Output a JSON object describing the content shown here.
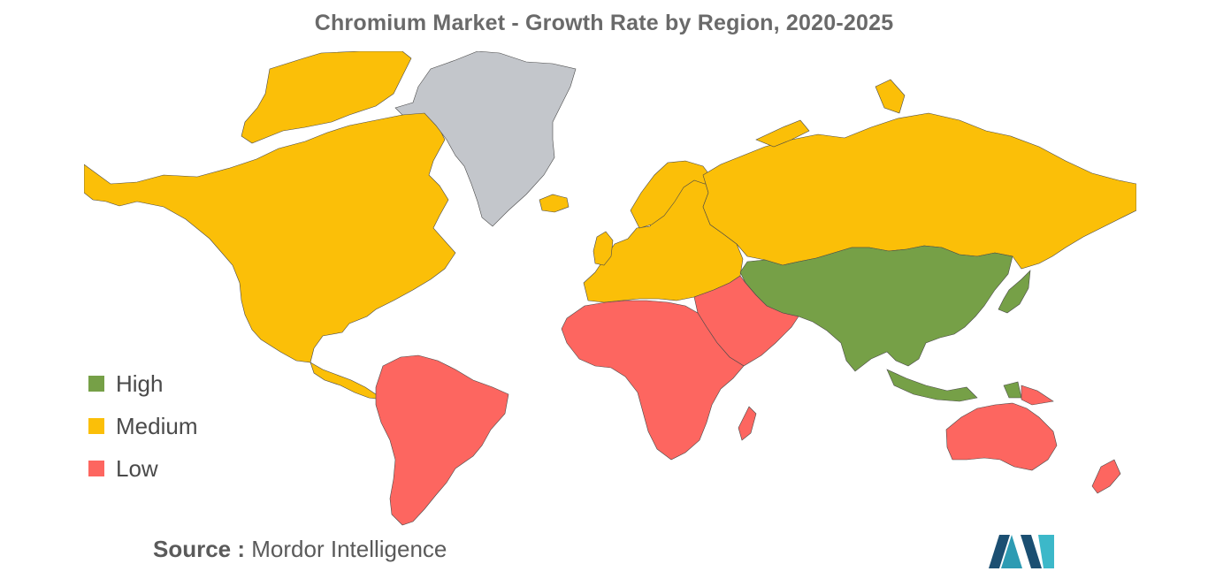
{
  "title": "Chromium Market - Growth Rate by Region, 2020-2025",
  "legend": [
    {
      "label": "High",
      "color": "#76a047"
    },
    {
      "label": "Medium",
      "color": "#fbbf08"
    },
    {
      "label": "Low",
      "color": "#fd6660"
    }
  ],
  "no_data_color": "#c3c6cb",
  "regions": {
    "north_america": "Medium",
    "europe": "Medium",
    "russia": "Medium",
    "asia_pacific": "High",
    "south_america": "Low",
    "africa": "Low",
    "middle_east": "Low",
    "oceania": "Low",
    "greenland": "No data"
  },
  "source": {
    "prefix": "Source :",
    "name": "Mordor Intelligence"
  },
  "logo_icon": "mordor-intelligence-logo-icon"
}
